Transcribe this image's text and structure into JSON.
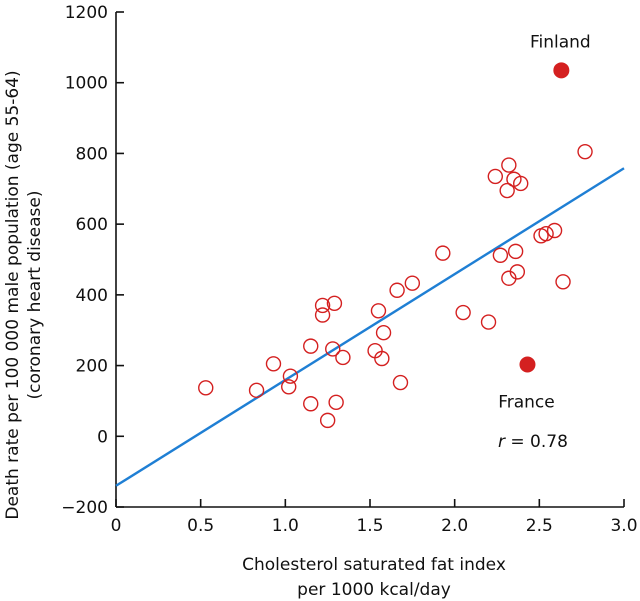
{
  "chart_data": {
    "type": "scatter",
    "title": "",
    "xlabel_lines": [
      "Cholesterol saturated fat index",
      "per 1000 kcal/day"
    ],
    "ylabel_lines": [
      "Death rate per 100 000 male population (age 55-64)",
      "(coronary heart disease)"
    ],
    "xlim": [
      0,
      3.0
    ],
    "ylim": [
      -200,
      1200
    ],
    "xticks": [
      0,
      0.5,
      1.0,
      1.5,
      2.0,
      2.5,
      3.0
    ],
    "xtick_labels": [
      "0",
      "0.5",
      "1.0",
      "1.5",
      "2.0",
      "2.5",
      "3.0"
    ],
    "yticks": [
      -200,
      0,
      200,
      400,
      600,
      800,
      1000,
      1200
    ],
    "ytick_labels": [
      "−200",
      "0",
      "200",
      "400",
      "600",
      "800",
      "1000",
      "1200"
    ],
    "grid": false,
    "marker_color": "#d42020",
    "line_color": "#1f7fd4",
    "points": [
      {
        "x": 0.53,
        "y": 137
      },
      {
        "x": 0.83,
        "y": 130
      },
      {
        "x": 0.93,
        "y": 205
      },
      {
        "x": 1.02,
        "y": 140
      },
      {
        "x": 1.03,
        "y": 170
      },
      {
        "x": 1.15,
        "y": 92
      },
      {
        "x": 1.15,
        "y": 255
      },
      {
        "x": 1.22,
        "y": 370
      },
      {
        "x": 1.22,
        "y": 343
      },
      {
        "x": 1.25,
        "y": 45
      },
      {
        "x": 1.28,
        "y": 247
      },
      {
        "x": 1.29,
        "y": 376
      },
      {
        "x": 1.3,
        "y": 96
      },
      {
        "x": 1.34,
        "y": 223
      },
      {
        "x": 1.53,
        "y": 242
      },
      {
        "x": 1.55,
        "y": 355
      },
      {
        "x": 1.57,
        "y": 220
      },
      {
        "x": 1.58,
        "y": 293
      },
      {
        "x": 1.66,
        "y": 413
      },
      {
        "x": 1.68,
        "y": 152
      },
      {
        "x": 1.75,
        "y": 433
      },
      {
        "x": 1.93,
        "y": 518
      },
      {
        "x": 2.05,
        "y": 350
      },
      {
        "x": 2.2,
        "y": 323
      },
      {
        "x": 2.24,
        "y": 735
      },
      {
        "x": 2.27,
        "y": 512
      },
      {
        "x": 2.31,
        "y": 695
      },
      {
        "x": 2.32,
        "y": 447
      },
      {
        "x": 2.32,
        "y": 767
      },
      {
        "x": 2.35,
        "y": 727
      },
      {
        "x": 2.36,
        "y": 523
      },
      {
        "x": 2.37,
        "y": 465
      },
      {
        "x": 2.39,
        "y": 715
      },
      {
        "x": 2.51,
        "y": 567
      },
      {
        "x": 2.54,
        "y": 573
      },
      {
        "x": 2.59,
        "y": 582
      },
      {
        "x": 2.64,
        "y": 437
      },
      {
        "x": 2.77,
        "y": 805
      }
    ],
    "highlighted_points": [
      {
        "name": "Finland",
        "x": 2.63,
        "y": 1035
      },
      {
        "name": "France",
        "x": 2.43,
        "y": 203
      }
    ],
    "regression_line": {
      "x": [
        0,
        3.0
      ],
      "y": [
        -140,
        758
      ]
    },
    "annotation": {
      "symbol": "r",
      "value": " = 0.78"
    }
  }
}
